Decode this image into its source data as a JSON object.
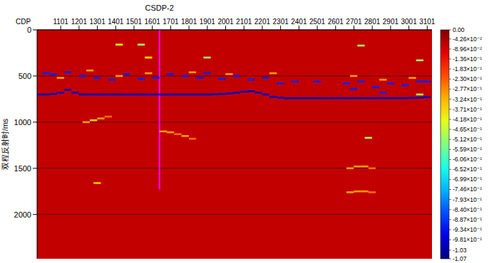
{
  "chart_data": {
    "type": "heatmap",
    "x_label": "CDP",
    "y_label": "双程反射时/ms",
    "xlim": [
      972,
      3127
    ],
    "xticks": [
      1101,
      1201,
      1301,
      1401,
      1501,
      1601,
      1701,
      1801,
      1901,
      2001,
      2101,
      2201,
      2301,
      2401,
      2501,
      2601,
      2701,
      2801,
      2901,
      3001,
      3101
    ],
    "ylim": [
      0,
      2480
    ],
    "yticks": [
      0,
      500,
      1000,
      1500,
      2000
    ],
    "grid": true,
    "annotations": [
      {
        "text": "CSDP-2",
        "x": 1640,
        "y": [
          0,
          1730
        ],
        "color": "#ff00ff"
      }
    ],
    "fill_value": -0.07,
    "cell_size": [
      40,
      20
    ],
    "cells": [
      [
        980,
        700,
        -1.0
      ],
      [
        1020,
        700,
        -1.0
      ],
      [
        1060,
        695,
        -1.0
      ],
      [
        1100,
        680,
        -1.0
      ],
      [
        1140,
        650,
        -1.0
      ],
      [
        1180,
        680,
        -1.0
      ],
      [
        1220,
        700,
        -1.0
      ],
      [
        1260,
        700,
        -1.0
      ],
      [
        1300,
        700,
        -1.0
      ],
      [
        1340,
        700,
        -1.0
      ],
      [
        1380,
        700,
        -1.0
      ],
      [
        1420,
        700,
        -1.0
      ],
      [
        1460,
        700,
        -1.0
      ],
      [
        1500,
        700,
        -1.0
      ],
      [
        1540,
        700,
        -1.0
      ],
      [
        1580,
        700,
        -1.0
      ],
      [
        1620,
        700,
        -1.0
      ],
      [
        1660,
        700,
        -1.0
      ],
      [
        1700,
        700,
        -1.0
      ],
      [
        1740,
        700,
        -1.0
      ],
      [
        1780,
        700,
        -1.0
      ],
      [
        1820,
        700,
        -1.0
      ],
      [
        1860,
        700,
        -1.0
      ],
      [
        1900,
        700,
        -1.0
      ],
      [
        1940,
        698,
        -1.0
      ],
      [
        1980,
        695,
        -1.0
      ],
      [
        2020,
        690,
        -1.0
      ],
      [
        2060,
        680,
        -1.0
      ],
      [
        2100,
        670,
        -1.0
      ],
      [
        2140,
        665,
        -1.0
      ],
      [
        2180,
        680,
        -1.0
      ],
      [
        2220,
        700,
        -1.0
      ],
      [
        2260,
        725,
        -1.0
      ],
      [
        2300,
        735,
        -1.0
      ],
      [
        2340,
        740,
        -1.0
      ],
      [
        2380,
        740,
        -1.0
      ],
      [
        2420,
        740,
        -1.0
      ],
      [
        2460,
        740,
        -1.0
      ],
      [
        2500,
        740,
        -1.0
      ],
      [
        2540,
        740,
        -1.0
      ],
      [
        2580,
        740,
        -1.0
      ],
      [
        2620,
        740,
        -1.0
      ],
      [
        2660,
        740,
        -1.0
      ],
      [
        2700,
        740,
        -1.0
      ],
      [
        2740,
        740,
        -1.0
      ],
      [
        2780,
        740,
        -1.0
      ],
      [
        2820,
        740,
        -1.0
      ],
      [
        2860,
        740,
        -1.0
      ],
      [
        2900,
        740,
        -1.0
      ],
      [
        2940,
        740,
        -1.0
      ],
      [
        2980,
        740,
        -1.0
      ],
      [
        3020,
        738,
        -1.0
      ],
      [
        3060,
        735,
        -1.0
      ],
      [
        3100,
        730,
        -1.0
      ],
      [
        1020,
        470,
        -0.9
      ],
      [
        1060,
        480,
        -0.9
      ],
      [
        1140,
        460,
        -0.9
      ],
      [
        1220,
        500,
        -0.9
      ],
      [
        1300,
        520,
        -0.9
      ],
      [
        1380,
        540,
        -0.9
      ],
      [
        1460,
        480,
        -0.9
      ],
      [
        1540,
        530,
        -0.9
      ],
      [
        1620,
        520,
        -0.9
      ],
      [
        1700,
        480,
        -0.9
      ],
      [
        1780,
        500,
        -0.9
      ],
      [
        1860,
        520,
        -0.9
      ],
      [
        1900,
        470,
        -0.9
      ],
      [
        1980,
        530,
        -0.9
      ],
      [
        2060,
        500,
        -0.9
      ],
      [
        2140,
        540,
        -0.9
      ],
      [
        2220,
        520,
        -0.9
      ],
      [
        2300,
        580,
        -0.9
      ],
      [
        2380,
        560,
        -0.9
      ],
      [
        2500,
        560,
        -0.9
      ],
      [
        2660,
        580,
        -0.9
      ],
      [
        2740,
        560,
        -0.9
      ],
      [
        2820,
        620,
        -0.9
      ],
      [
        2900,
        580,
        -0.9
      ],
      [
        2980,
        600,
        -0.9
      ],
      [
        3060,
        560,
        -0.9
      ],
      [
        3100,
        560,
        -0.9
      ],
      [
        1100,
        520,
        -0.3
      ],
      [
        1260,
        440,
        -0.3
      ],
      [
        1420,
        500,
        -0.3
      ],
      [
        1580,
        470,
        -0.3
      ],
      [
        1820,
        460,
        -0.3
      ],
      [
        2020,
        480,
        -0.3
      ],
      [
        2260,
        470,
        -0.3
      ],
      [
        2700,
        500,
        -0.3
      ],
      [
        2860,
        540,
        -0.3
      ],
      [
        3020,
        520,
        -0.3
      ],
      [
        1580,
        300,
        -0.4
      ],
      [
        1900,
        300,
        -0.5
      ],
      [
        2740,
        170,
        -0.5
      ],
      [
        3060,
        330,
        -0.5
      ],
      [
        1420,
        160,
        -0.4
      ],
      [
        1540,
        160,
        -0.5
      ],
      [
        2700,
        640,
        -0.9
      ],
      [
        2860,
        680,
        -0.9
      ],
      [
        3060,
        700,
        -0.5
      ],
      [
        1240,
        1000,
        -0.3
      ],
      [
        1280,
        980,
        -0.35
      ],
      [
        1320,
        960,
        -0.3
      ],
      [
        1360,
        940,
        -0.25
      ],
      [
        1660,
        1100,
        -0.3
      ],
      [
        1700,
        1110,
        -0.3
      ],
      [
        1740,
        1130,
        -0.25
      ],
      [
        1780,
        1150,
        -0.3
      ],
      [
        1820,
        1180,
        -0.25
      ],
      [
        1300,
        1660,
        -0.35
      ],
      [
        2680,
        1500,
        -0.3
      ],
      [
        2720,
        1480,
        -0.3
      ],
      [
        2760,
        1480,
        -0.3
      ],
      [
        2800,
        1500,
        -0.25
      ],
      [
        2680,
        1760,
        -0.3
      ],
      [
        2720,
        1750,
        -0.3
      ],
      [
        2760,
        1750,
        -0.3
      ],
      [
        2800,
        1760,
        -0.25
      ],
      [
        2780,
        1170,
        -0.5
      ]
    ],
    "clim": [
      -1.07,
      0
    ],
    "cticks": [
      {
        "value": 0,
        "label": "0.00"
      },
      {
        "value": -0.0426,
        "label": "-4.26×10⁻²"
      },
      {
        "value": -0.0896,
        "label": "-8.96×10⁻²"
      },
      {
        "value": -0.136,
        "label": "-1.36×10⁻¹"
      },
      {
        "value": -0.183,
        "label": "-1.83×10⁻¹"
      },
      {
        "value": -0.23,
        "label": "-2.30×10⁻¹"
      },
      {
        "value": -0.277,
        "label": "-2.77×10⁻¹"
      },
      {
        "value": -0.324,
        "label": "-3.24×10⁻¹"
      },
      {
        "value": -0.371,
        "label": "-3.71×10⁻¹"
      },
      {
        "value": -0.418,
        "label": "-4.18×10⁻¹"
      },
      {
        "value": -0.465,
        "label": "-4.65×10⁻¹"
      },
      {
        "value": -0.512,
        "label": "-5.12×10⁻¹"
      },
      {
        "value": -0.559,
        "label": "-5.59×10⁻¹"
      },
      {
        "value": -0.606,
        "label": "-6.06×10⁻¹"
      },
      {
        "value": -0.652,
        "label": "-6.52×10⁻¹"
      },
      {
        "value": -0.699,
        "label": "-6.99×10⁻¹"
      },
      {
        "value": -0.746,
        "label": "-7.46×10⁻¹"
      },
      {
        "value": -0.793,
        "label": "-7.93×10⁻¹"
      },
      {
        "value": -0.84,
        "label": "-8.40×10⁻¹"
      },
      {
        "value": -0.887,
        "label": "-8.87×10⁻¹"
      },
      {
        "value": -0.934,
        "label": "-9.34×10⁻¹"
      },
      {
        "value": -0.981,
        "label": "-9.81×10⁻¹"
      },
      {
        "value": -1.03,
        "label": "-1.03"
      },
      {
        "value": -1.07,
        "label": "-1.07"
      }
    ]
  }
}
